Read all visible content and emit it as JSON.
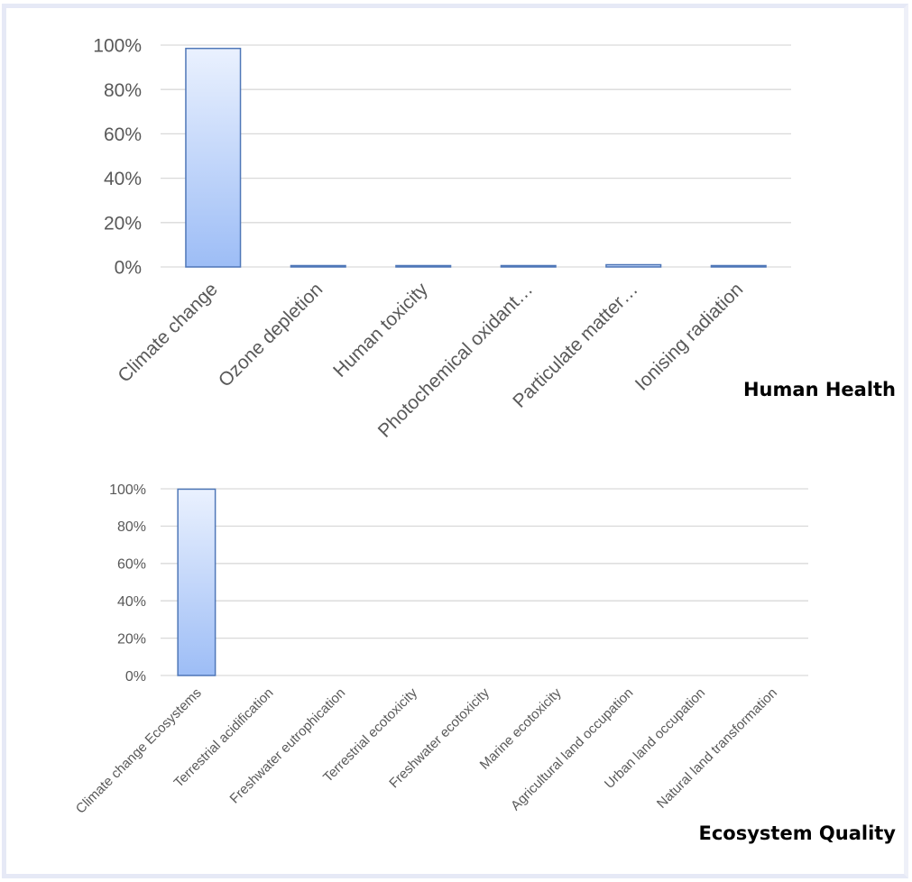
{
  "colors": {
    "bar_top": "#eaf1fe",
    "bar_bottom": "#9dbdf6",
    "bar_stroke": "#4f77b8",
    "grid": "#d9d9d9",
    "text": "#595959",
    "frame": "#e6e9f6"
  },
  "chart_data": [
    {
      "type": "bar",
      "title": "Human Health",
      "categories": [
        "Climate change",
        "Ozone depletion",
        "Human toxicity",
        "Photochemical oxidant…",
        "Particulate matter…",
        "Ionising radiation"
      ],
      "values": [
        98.5,
        0.2,
        0.2,
        0.2,
        1.0,
        0.2
      ],
      "ylim": [
        0,
        100
      ],
      "yticks": [
        "0%",
        "20%",
        "40%",
        "60%",
        "80%",
        "100%"
      ],
      "grid": true
    },
    {
      "type": "bar",
      "title": "Ecosystem Quality",
      "categories": [
        "Climate change Ecosystems",
        "Terrestrial acidification",
        "Freshwater eutrophication",
        "Terrestrial ecotoxicity",
        "Freshwater ecotoxicity",
        "Marine ecotoxicity",
        "Agricultural land occupation",
        "Urban land occupation",
        "Natural land transformation"
      ],
      "values": [
        99.8,
        0,
        0,
        0,
        0,
        0,
        0,
        0,
        0
      ],
      "ylim": [
        0,
        100
      ],
      "yticks": [
        "0%",
        "20%",
        "40%",
        "60%",
        "80%",
        "100%"
      ],
      "grid": true
    }
  ]
}
